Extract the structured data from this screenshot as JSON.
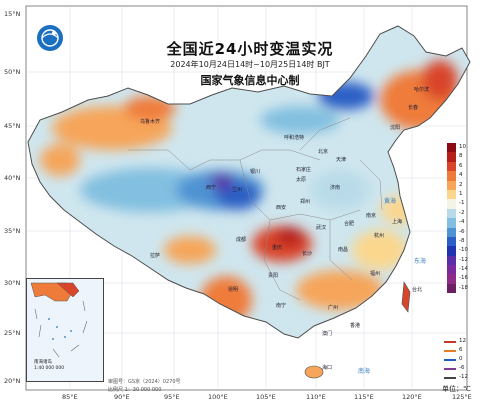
{
  "header": {
    "title": "全国近24小时变温实况",
    "subtitle": "2024年10月24日14时~10月25日14时 BJT",
    "organization": "国家气象信息中心制"
  },
  "latitude_labels": [
    "50°N",
    "45°N",
    "40°N",
    "35°N",
    "30°N",
    "25°N",
    "20°N",
    "15°N"
  ],
  "longitude_labels": [
    "85°E",
    "90°E",
    "95°E",
    "100°E",
    "105°E",
    "110°E",
    "115°E",
    "120°E",
    "125°E"
  ],
  "legend": {
    "items": [
      {
        "value": "10",
        "color": "#8b0a14"
      },
      {
        "value": "8",
        "color": "#b51f1b"
      },
      {
        "value": "6",
        "color": "#d9452a"
      },
      {
        "value": "4",
        "color": "#ef7b3b"
      },
      {
        "value": "2",
        "color": "#f6a55a"
      },
      {
        "value": "1",
        "color": "#fbd78e"
      },
      {
        "value": "-1",
        "color": "#f3f3e6"
      },
      {
        "value": "-2",
        "color": "#b9dbe9"
      },
      {
        "value": "-4",
        "color": "#82bfe0"
      },
      {
        "value": "-6",
        "color": "#4f93d3"
      },
      {
        "value": "-8",
        "color": "#2c5fc5"
      },
      {
        "value": "-10",
        "color": "#2034b0"
      },
      {
        "value": "-12",
        "color": "#5a2ea6"
      },
      {
        "value": "-14",
        "color": "#7a2a9c"
      },
      {
        "value": "-16",
        "color": "#8e2a88"
      },
      {
        "value": "-18",
        "color": "#6c1f63"
      }
    ]
  },
  "isoline_legend": [
    {
      "value": "12",
      "color": "#c0392b"
    },
    {
      "value": "6",
      "color": "#e67e22"
    },
    {
      "value": "0",
      "color": "#1f5fbf"
    },
    {
      "value": "-6",
      "color": "#7d3c98"
    },
    {
      "value": "-12",
      "color": "#444444"
    }
  ],
  "unit": "单位：℃",
  "inset": {
    "label": "南海诸岛",
    "scale": "1:40 000 000"
  },
  "footer": {
    "map_number": "审图号：GS京（2024）0270号",
    "scale": "比例尺 1：30 000 000"
  },
  "cities": [
    "北京",
    "天津",
    "石家庄",
    "沈阳",
    "长春",
    "哈尔滨",
    "济南",
    "郑州",
    "武汉",
    "长沙",
    "南昌",
    "合肥",
    "南京",
    "上海",
    "杭州",
    "福州",
    "广州",
    "南宁",
    "贵阳",
    "重庆",
    "成都",
    "昆明",
    "西安",
    "兰州",
    "西宁",
    "银川",
    "呼和浩特",
    "太原",
    "乌鲁木齐",
    "拉萨",
    "海口",
    "台北",
    "香港",
    "澳门"
  ],
  "seas": [
    "黄海",
    "东海",
    "南海"
  ]
}
